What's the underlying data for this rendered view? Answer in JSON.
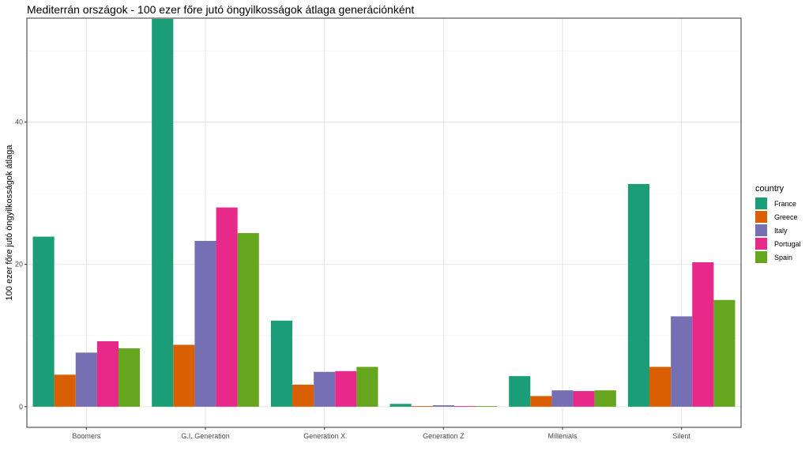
{
  "chart_data": {
    "type": "bar",
    "title": "Mediterrán országok - 100 ezer főre jutó öngyilkosságok átlaga generációnként",
    "xlabel": "",
    "ylabel": "100 ezer főre jutó öngyilkosságok átlaga",
    "ylim": [
      -2.9,
      54.6
    ],
    "yticks": [
      0,
      20,
      40
    ],
    "grid": true,
    "legend_title": "country",
    "legend_position": "right",
    "categories": [
      "Boomers",
      "G.I. Generation",
      "Generation X",
      "Generation Z",
      "Millenials",
      "Silent"
    ],
    "series": [
      {
        "name": "France",
        "color": "#1b9e77",
        "values": [
          23.9,
          54.5,
          12.1,
          0.4,
          4.3,
          31.3
        ]
      },
      {
        "name": "Greece",
        "color": "#d95f02",
        "values": [
          4.5,
          8.7,
          3.1,
          0.1,
          1.5,
          5.6
        ]
      },
      {
        "name": "Italy",
        "color": "#7570b3",
        "values": [
          7.6,
          23.3,
          4.9,
          0.2,
          2.3,
          12.7
        ]
      },
      {
        "name": "Portugal",
        "color": "#e7298a",
        "values": [
          9.2,
          28.0,
          5.0,
          0.1,
          2.2,
          20.3
        ]
      },
      {
        "name": "Spain",
        "color": "#66a61e",
        "values": [
          8.2,
          24.4,
          5.6,
          0.1,
          2.3,
          15.0
        ]
      }
    ]
  }
}
